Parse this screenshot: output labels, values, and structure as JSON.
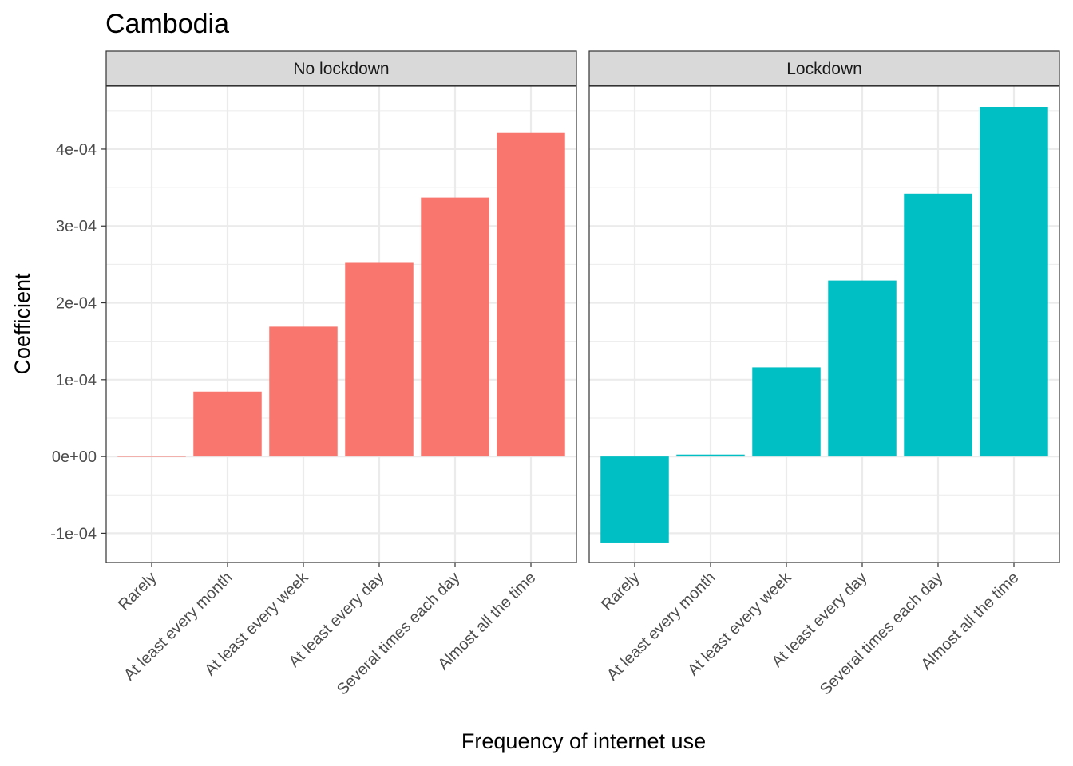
{
  "chart_data": {
    "type": "bar",
    "title": "Cambodia",
    "xlabel": "Frequency of internet use",
    "ylabel": "Coefficient",
    "ylim": [
      -0.000138,
      0.000482
    ],
    "yticks": [
      -0.0001,
      0,
      0.0001,
      0.0002,
      0.0003,
      0.0004
    ],
    "ytick_labels": [
      "-1e-04",
      "0e+00",
      "1e-04",
      "2e-04",
      "3e-04",
      "4e-04"
    ],
    "grid": true,
    "categories": [
      "Rarely",
      "At least every month",
      "At least every week",
      "At least every day",
      "Several times each day",
      "Almost all the time"
    ],
    "panels": [
      {
        "name": "No lockdown",
        "color": "#f8766d",
        "values": [
          0,
          8.45e-05,
          0.000169,
          0.000253,
          0.000337,
          0.000421
        ]
      },
      {
        "name": "Lockdown",
        "color": "#00bfc4",
        "values": [
          -0.000112,
          2.5e-06,
          0.000116,
          0.000229,
          0.000342,
          0.000455
        ]
      }
    ]
  }
}
